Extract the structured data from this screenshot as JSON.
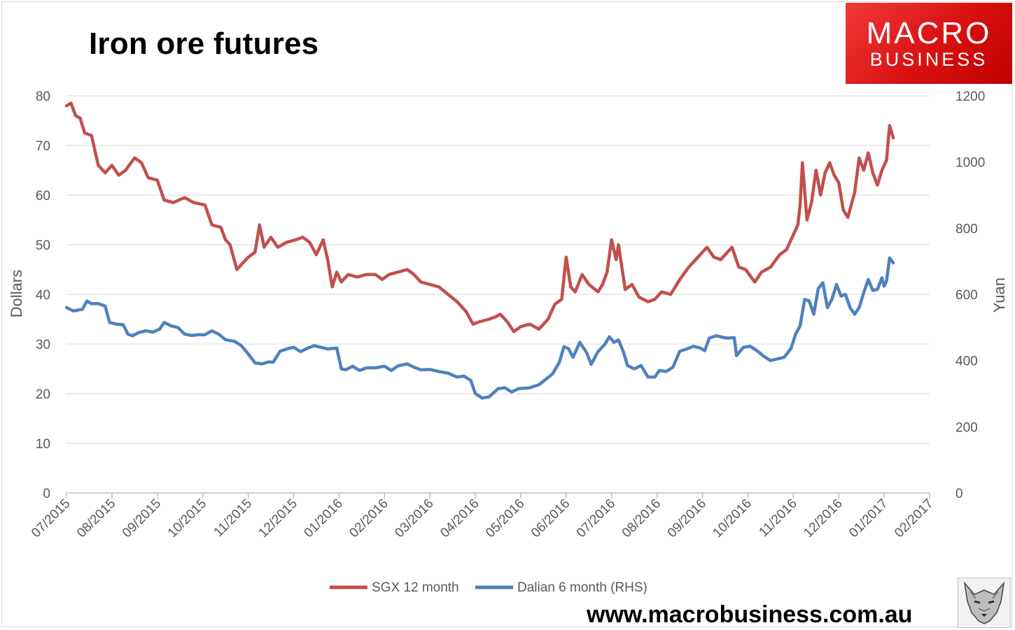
{
  "title": "Iron ore futures",
  "logo": {
    "line1": "MACRO",
    "line2": "BUSINESS"
  },
  "website": "www.macrobusiness.com.au",
  "colors": {
    "sgx": "#c0504d",
    "dalian": "#4f81bd",
    "axis": "#bfbfbf",
    "text": "#595959",
    "logo_red": "#e21b1b"
  },
  "chart_data": {
    "type": "line",
    "ylabel_left": "Dollars",
    "ylabel_right": "Yuan",
    "ylim_left": [
      0,
      80
    ],
    "ylim_right": [
      0,
      1200
    ],
    "yticks_left": [
      "0",
      "10",
      "20",
      "30",
      "40",
      "50",
      "60",
      "70",
      "80"
    ],
    "yticks_right": [
      "0",
      "200",
      "400",
      "600",
      "800",
      "1000",
      "1200"
    ],
    "x_labels": [
      "07/2015",
      "08/2015",
      "09/2015",
      "10/2015",
      "11/2015",
      "12/2015",
      "01/2016",
      "02/2016",
      "03/2016",
      "04/2016",
      "05/2016",
      "06/2016",
      "07/2016",
      "08/2016",
      "09/2016",
      "10/2016",
      "11/2016",
      "12/2016",
      "01/2017",
      "02/2017"
    ],
    "grid": "horizontal",
    "legend_position": "bottom",
    "series": [
      {
        "name": "SGX 12 month",
        "axis": "left",
        "points": [
          [
            0,
            78
          ],
          [
            0.1,
            78.5
          ],
          [
            0.2,
            76
          ],
          [
            0.3,
            75.5
          ],
          [
            0.4,
            72.5
          ],
          [
            0.55,
            72
          ],
          [
            0.7,
            66
          ],
          [
            0.85,
            64.5
          ],
          [
            1.0,
            66
          ],
          [
            1.15,
            64
          ],
          [
            1.3,
            65
          ],
          [
            1.5,
            67.5
          ],
          [
            1.65,
            66.5
          ],
          [
            1.8,
            63.5
          ],
          [
            2.0,
            63
          ],
          [
            2.15,
            59
          ],
          [
            2.35,
            58.5
          ],
          [
            2.6,
            59.5
          ],
          [
            2.8,
            58.5
          ],
          [
            3.05,
            58
          ],
          [
            3.2,
            54
          ],
          [
            3.4,
            53.5
          ],
          [
            3.5,
            51
          ],
          [
            3.6,
            50
          ],
          [
            3.75,
            45
          ],
          [
            3.85,
            46
          ],
          [
            4.0,
            47.5
          ],
          [
            4.15,
            48.5
          ],
          [
            4.25,
            54
          ],
          [
            4.35,
            49.5
          ],
          [
            4.5,
            51.5
          ],
          [
            4.65,
            49.5
          ],
          [
            4.85,
            50.5
          ],
          [
            5.05,
            51
          ],
          [
            5.2,
            51.5
          ],
          [
            5.35,
            50.5
          ],
          [
            5.5,
            48
          ],
          [
            5.65,
            51
          ],
          [
            5.75,
            47
          ],
          [
            5.85,
            41.5
          ],
          [
            5.95,
            44.5
          ],
          [
            6.05,
            42.5
          ],
          [
            6.2,
            44
          ],
          [
            6.4,
            43.5
          ],
          [
            6.6,
            44
          ],
          [
            6.8,
            44
          ],
          [
            6.95,
            43
          ],
          [
            7.1,
            44
          ],
          [
            7.3,
            44.5
          ],
          [
            7.5,
            45
          ],
          [
            7.65,
            44
          ],
          [
            7.8,
            42.5
          ],
          [
            8.0,
            42
          ],
          [
            8.2,
            41.5
          ],
          [
            8.4,
            40
          ],
          [
            8.6,
            38.5
          ],
          [
            8.8,
            36.5
          ],
          [
            8.95,
            34
          ],
          [
            9.1,
            34.5
          ],
          [
            9.3,
            35
          ],
          [
            9.45,
            35.5
          ],
          [
            9.55,
            36
          ],
          [
            9.7,
            34.5
          ],
          [
            9.85,
            32.5
          ],
          [
            10.0,
            33.5
          ],
          [
            10.2,
            34
          ],
          [
            10.4,
            33
          ],
          [
            10.6,
            35
          ],
          [
            10.75,
            38
          ],
          [
            10.9,
            39
          ],
          [
            11.0,
            47.5
          ],
          [
            11.1,
            41.5
          ],
          [
            11.2,
            40.5
          ],
          [
            11.35,
            44
          ],
          [
            11.5,
            42
          ],
          [
            11.7,
            40.5
          ],
          [
            11.8,
            42
          ],
          [
            11.9,
            44.5
          ],
          [
            12.0,
            51
          ],
          [
            12.1,
            47
          ],
          [
            12.15,
            50
          ],
          [
            12.3,
            41
          ],
          [
            12.45,
            42
          ],
          [
            12.6,
            39.5
          ],
          [
            12.8,
            38.5
          ],
          [
            12.95,
            39
          ],
          [
            13.1,
            40.5
          ],
          [
            13.3,
            40
          ],
          [
            13.5,
            43
          ],
          [
            13.7,
            45.5
          ],
          [
            13.9,
            47.5
          ],
          [
            14.1,
            49.5
          ],
          [
            14.25,
            47.5
          ],
          [
            14.4,
            47
          ],
          [
            14.55,
            48.5
          ],
          [
            14.65,
            49.5
          ],
          [
            14.8,
            45.5
          ],
          [
            14.95,
            45
          ],
          [
            15.15,
            42.5
          ],
          [
            15.3,
            44.5
          ],
          [
            15.5,
            45.5
          ],
          [
            15.7,
            48
          ],
          [
            15.85,
            49
          ],
          [
            16.0,
            52
          ],
          [
            16.1,
            54
          ],
          [
            16.15,
            58
          ],
          [
            16.2,
            66.5
          ],
          [
            16.3,
            55
          ],
          [
            16.4,
            58.5
          ],
          [
            16.5,
            65
          ],
          [
            16.6,
            60
          ],
          [
            16.7,
            64.5
          ],
          [
            16.8,
            66.5
          ],
          [
            16.9,
            64
          ],
          [
            17.0,
            62.5
          ],
          [
            17.1,
            57
          ],
          [
            17.2,
            55.5
          ],
          [
            17.35,
            60.5
          ],
          [
            17.45,
            67.5
          ],
          [
            17.55,
            65
          ],
          [
            17.65,
            68.5
          ],
          [
            17.75,
            64.5
          ],
          [
            17.85,
            62
          ],
          [
            17.95,
            65
          ],
          [
            18.05,
            67
          ],
          [
            18.12,
            74
          ],
          [
            18.2,
            71.5
          ]
        ]
      },
      {
        "name": "Dalian 6 month (RHS)",
        "axis": "right",
        "points": [
          [
            0,
            560
          ],
          [
            0.15,
            550
          ],
          [
            0.35,
            555
          ],
          [
            0.45,
            580
          ],
          [
            0.55,
            572
          ],
          [
            0.7,
            572
          ],
          [
            0.85,
            565
          ],
          [
            0.95,
            515
          ],
          [
            1.1,
            510
          ],
          [
            1.25,
            508
          ],
          [
            1.35,
            480
          ],
          [
            1.45,
            475
          ],
          [
            1.6,
            485
          ],
          [
            1.75,
            490
          ],
          [
            1.9,
            486
          ],
          [
            2.05,
            495
          ],
          [
            2.15,
            515
          ],
          [
            2.3,
            505
          ],
          [
            2.45,
            500
          ],
          [
            2.6,
            480
          ],
          [
            2.75,
            476
          ],
          [
            2.9,
            478
          ],
          [
            3.05,
            478
          ],
          [
            3.2,
            490
          ],
          [
            3.35,
            480
          ],
          [
            3.5,
            463
          ],
          [
            3.7,
            458
          ],
          [
            3.85,
            445
          ],
          [
            4.0,
            420
          ],
          [
            4.15,
            393
          ],
          [
            4.3,
            390
          ],
          [
            4.45,
            396
          ],
          [
            4.55,
            395
          ],
          [
            4.7,
            428
          ],
          [
            4.85,
            435
          ],
          [
            5.0,
            440
          ],
          [
            5.15,
            427
          ],
          [
            5.3,
            437
          ],
          [
            5.45,
            445
          ],
          [
            5.6,
            440
          ],
          [
            5.75,
            435
          ],
          [
            5.95,
            438
          ],
          [
            6.05,
            375
          ],
          [
            6.15,
            372
          ],
          [
            6.3,
            383
          ],
          [
            6.45,
            370
          ],
          [
            6.6,
            378
          ],
          [
            6.8,
            378
          ],
          [
            7.0,
            383
          ],
          [
            7.15,
            370
          ],
          [
            7.3,
            384
          ],
          [
            7.5,
            390
          ],
          [
            7.65,
            380
          ],
          [
            7.8,
            372
          ],
          [
            8.0,
            373
          ],
          [
            8.2,
            367
          ],
          [
            8.4,
            362
          ],
          [
            8.6,
            350
          ],
          [
            8.75,
            353
          ],
          [
            8.9,
            340
          ],
          [
            9.0,
            300
          ],
          [
            9.15,
            287
          ],
          [
            9.3,
            290
          ],
          [
            9.5,
            315
          ],
          [
            9.65,
            318
          ],
          [
            9.8,
            305
          ],
          [
            9.95,
            315
          ],
          [
            10.2,
            318
          ],
          [
            10.4,
            327
          ],
          [
            10.55,
            343
          ],
          [
            10.7,
            360
          ],
          [
            10.85,
            395
          ],
          [
            10.95,
            442
          ],
          [
            11.05,
            436
          ],
          [
            11.15,
            410
          ],
          [
            11.3,
            455
          ],
          [
            11.45,
            424
          ],
          [
            11.55,
            389
          ],
          [
            11.7,
            427
          ],
          [
            11.85,
            449
          ],
          [
            11.95,
            472
          ],
          [
            12.05,
            455
          ],
          [
            12.15,
            462
          ],
          [
            12.25,
            430
          ],
          [
            12.35,
            385
          ],
          [
            12.5,
            375
          ],
          [
            12.65,
            385
          ],
          [
            12.8,
            350
          ],
          [
            12.95,
            350
          ],
          [
            13.05,
            370
          ],
          [
            13.2,
            367
          ],
          [
            13.35,
            380
          ],
          [
            13.5,
            428
          ],
          [
            13.65,
            435
          ],
          [
            13.8,
            443
          ],
          [
            13.95,
            438
          ],
          [
            14.05,
            430
          ],
          [
            14.15,
            468
          ],
          [
            14.3,
            475
          ],
          [
            14.45,
            470
          ],
          [
            14.55,
            468
          ],
          [
            14.7,
            469
          ],
          [
            14.75,
            415
          ],
          [
            14.9,
            440
          ],
          [
            15.05,
            443
          ],
          [
            15.2,
            430
          ],
          [
            15.35,
            413
          ],
          [
            15.5,
            400
          ],
          [
            15.65,
            405
          ],
          [
            15.8,
            410
          ],
          [
            15.95,
            437
          ],
          [
            16.05,
            480
          ],
          [
            16.15,
            505
          ],
          [
            16.25,
            585
          ],
          [
            16.35,
            580
          ],
          [
            16.45,
            540
          ],
          [
            16.55,
            618
          ],
          [
            16.65,
            635
          ],
          [
            16.75,
            560
          ],
          [
            16.85,
            585
          ],
          [
            16.95,
            630
          ],
          [
            17.05,
            595
          ],
          [
            17.15,
            600
          ],
          [
            17.25,
            560
          ],
          [
            17.35,
            540
          ],
          [
            17.45,
            560
          ],
          [
            17.55,
            605
          ],
          [
            17.65,
            645
          ],
          [
            17.75,
            612
          ],
          [
            17.85,
            615
          ],
          [
            17.95,
            650
          ],
          [
            18.0,
            625
          ],
          [
            18.05,
            640
          ],
          [
            18.12,
            710
          ],
          [
            18.2,
            695
          ]
        ]
      }
    ]
  }
}
